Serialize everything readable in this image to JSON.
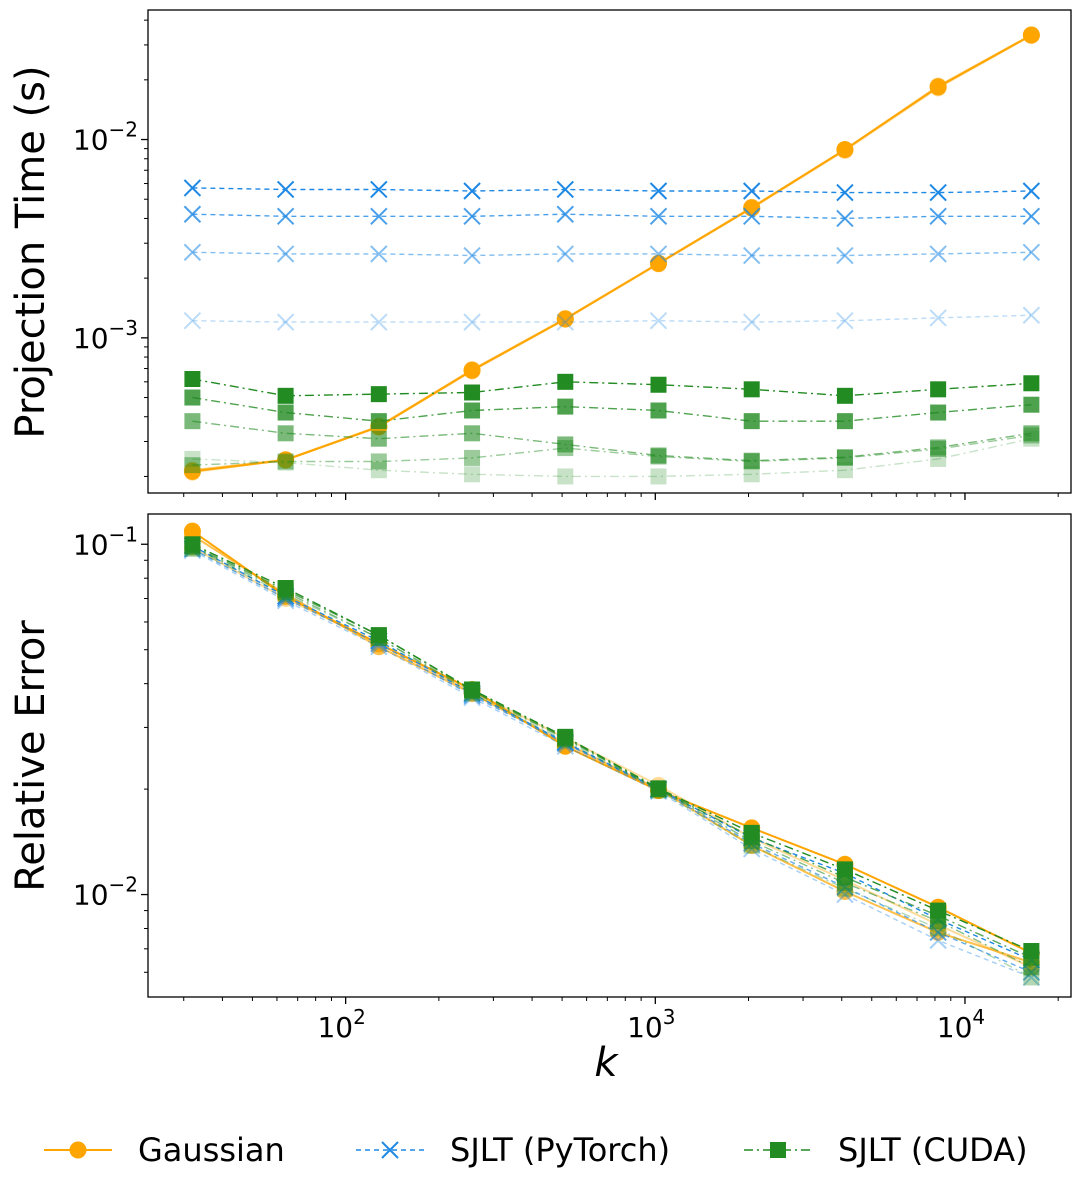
{
  "chart_data": [
    {
      "type": "line",
      "panel": "top",
      "title": "",
      "xscale": "log",
      "yscale": "log",
      "xlabel": "",
      "ylabel": "Projection Time (s)",
      "xlim": [
        23,
        22000
      ],
      "ylim": [
        0.000165,
        0.045
      ],
      "yticks": [
        {
          "value": 0.01,
          "base": "10",
          "exp": "−2"
        },
        {
          "value": 0.001,
          "base": "10",
          "exp": "−3"
        }
      ],
      "x": [
        32,
        64,
        128,
        256,
        512,
        1024,
        2048,
        4096,
        8192,
        16384
      ],
      "series": [
        {
          "name": "Gaussian",
          "method": "gaussian",
          "alpha": 0.35,
          "values": [
            0.00021,
            0.000242,
            0.000355,
            0.00068,
            0.00124,
            0.00236,
            0.0045,
            0.0088,
            0.0182,
            0.0335
          ]
        },
        {
          "name": "Gaussian",
          "method": "gaussian",
          "alpha": 0.6,
          "values": [
            0.000215,
            0.000243,
            0.000358,
            0.00069,
            0.00125,
            0.00238,
            0.00455,
            0.0089,
            0.0186,
            0.0337
          ]
        },
        {
          "name": "Gaussian",
          "method": "gaussian",
          "alpha": 1.0,
          "values": [
            0.000212,
            0.000242,
            0.000356,
            0.000685,
            0.001245,
            0.00237,
            0.00452,
            0.0089,
            0.0184,
            0.0336
          ]
        },
        {
          "name": "SJLT (PyTorch)",
          "method": "sjlt_pytorch",
          "alpha": 0.3,
          "values": [
            0.00122,
            0.0012,
            0.0012,
            0.0012,
            0.0012,
            0.00122,
            0.0012,
            0.00122,
            0.00126,
            0.0013
          ]
        },
        {
          "name": "SJLT (PyTorch)",
          "method": "sjlt_pytorch",
          "alpha": 0.55,
          "values": [
            0.0027,
            0.00265,
            0.00265,
            0.0026,
            0.00265,
            0.00265,
            0.0026,
            0.0026,
            0.00265,
            0.0027
          ]
        },
        {
          "name": "SJLT (PyTorch)",
          "method": "sjlt_pytorch",
          "alpha": 0.8,
          "values": [
            0.0042,
            0.0041,
            0.0041,
            0.0041,
            0.0042,
            0.0041,
            0.0041,
            0.004,
            0.0041,
            0.0041
          ]
        },
        {
          "name": "SJLT (PyTorch)",
          "method": "sjlt_pytorch",
          "alpha": 1.0,
          "values": [
            0.0057,
            0.0056,
            0.0056,
            0.0055,
            0.0056,
            0.0055,
            0.0055,
            0.0054,
            0.0054,
            0.0055
          ]
        },
        {
          "name": "SJLT (CUDA)",
          "method": "sjlt_cuda",
          "alpha": 0.25,
          "values": [
            0.000245,
            0.000235,
            0.000215,
            0.000205,
            0.0002,
            0.0002,
            0.000205,
            0.000215,
            0.000245,
            0.00031
          ]
        },
        {
          "name": "SJLT (CUDA)",
          "method": "sjlt_cuda",
          "alpha": 0.45,
          "values": [
            0.000228,
            0.000238,
            0.000238,
            0.000248,
            0.000278,
            0.000252,
            0.000238,
            0.000248,
            0.000275,
            0.000322
          ]
        },
        {
          "name": "SJLT (CUDA)",
          "method": "sjlt_cuda",
          "alpha": 0.6,
          "values": [
            0.00038,
            0.00033,
            0.00031,
            0.00033,
            0.00029,
            0.000255,
            0.00024,
            0.00025,
            0.00028,
            0.00033
          ]
        },
        {
          "name": "SJLT (CUDA)",
          "method": "sjlt_cuda",
          "alpha": 0.8,
          "values": [
            0.0005,
            0.00042,
            0.00038,
            0.00043,
            0.00045,
            0.00043,
            0.00038,
            0.00038,
            0.00042,
            0.00046
          ]
        },
        {
          "name": "SJLT (CUDA)",
          "method": "sjlt_cuda",
          "alpha": 1.0,
          "values": [
            0.00062,
            0.00051,
            0.00052,
            0.00053,
            0.0006,
            0.00058,
            0.00055,
            0.00051,
            0.00055,
            0.00059
          ]
        }
      ]
    },
    {
      "type": "line",
      "panel": "bottom",
      "title": "",
      "xscale": "log",
      "yscale": "log",
      "xlabel": "k",
      "ylabel": "Relative Error",
      "xlim": [
        23,
        22000
      ],
      "ylim": [
        0.0051,
        0.122
      ],
      "xticks": [
        {
          "value": 100,
          "base": "10",
          "exp": "2"
        },
        {
          "value": 1000,
          "base": "10",
          "exp": "3"
        },
        {
          "value": 10000,
          "base": "10",
          "exp": "4"
        }
      ],
      "yticks": [
        {
          "value": 0.1,
          "base": "10",
          "exp": "−1"
        },
        {
          "value": 0.01,
          "base": "10",
          "exp": "−2"
        }
      ],
      "x": [
        32,
        64,
        128,
        256,
        512,
        1024,
        2048,
        4096,
        8192,
        16384
      ],
      "series": [
        {
          "name": "Gaussian",
          "method": "gaussian",
          "alpha": 0.4,
          "values": [
            0.098,
            0.07,
            0.052,
            0.038,
            0.028,
            0.0205,
            0.0145,
            0.011,
            0.0082,
            0.0062
          ]
        },
        {
          "name": "Gaussian",
          "method": "gaussian",
          "alpha": 0.7,
          "values": [
            0.106,
            0.072,
            0.051,
            0.0375,
            0.027,
            0.02,
            0.0138,
            0.0102,
            0.0078,
            0.0064
          ]
        },
        {
          "name": "Gaussian",
          "method": "gaussian",
          "alpha": 1.0,
          "values": [
            0.109,
            0.071,
            0.052,
            0.0385,
            0.0265,
            0.0198,
            0.0155,
            0.0122,
            0.0092,
            0.0068
          ]
        },
        {
          "name": "SJLT (PyTorch)",
          "method": "sjlt_pytorch",
          "alpha": 0.4,
          "values": [
            0.096,
            0.069,
            0.051,
            0.0365,
            0.0265,
            0.0197,
            0.0135,
            0.01,
            0.0074,
            0.0058
          ]
        },
        {
          "name": "SJLT (PyTorch)",
          "method": "sjlt_pytorch",
          "alpha": 0.7,
          "values": [
            0.097,
            0.07,
            0.052,
            0.037,
            0.027,
            0.0199,
            0.014,
            0.0105,
            0.0078,
            0.006
          ]
        },
        {
          "name": "SJLT (PyTorch)",
          "method": "sjlt_pytorch",
          "alpha": 1.0,
          "values": [
            0.099,
            0.071,
            0.053,
            0.0375,
            0.0272,
            0.02,
            0.0145,
            0.0115,
            0.0085,
            0.0065
          ]
        },
        {
          "name": "SJLT (CUDA)",
          "method": "sjlt_cuda",
          "alpha": 0.35,
          "values": [
            0.097,
            0.072,
            0.054,
            0.0375,
            0.0275,
            0.0198,
            0.0138,
            0.0104,
            0.008,
            0.0058
          ]
        },
        {
          "name": "SJLT (CUDA)",
          "method": "sjlt_cuda",
          "alpha": 0.55,
          "values": [
            0.098,
            0.073,
            0.054,
            0.038,
            0.0278,
            0.02,
            0.0142,
            0.0108,
            0.0084,
            0.0062
          ]
        },
        {
          "name": "SJLT (CUDA)",
          "method": "sjlt_cuda",
          "alpha": 0.75,
          "values": [
            0.099,
            0.074,
            0.055,
            0.0383,
            0.028,
            0.02,
            0.0146,
            0.0112,
            0.0087,
            0.0066
          ]
        },
        {
          "name": "SJLT (CUDA)",
          "method": "sjlt_cuda",
          "alpha": 1.0,
          "values": [
            0.1,
            0.075,
            0.055,
            0.0385,
            0.0282,
            0.0201,
            0.015,
            0.0118,
            0.009,
            0.0069
          ]
        }
      ]
    }
  ],
  "legend": [
    {
      "label": "Gaussian",
      "method": "gaussian"
    },
    {
      "label": "SJLT (PyTorch)",
      "method": "sjlt_pytorch"
    },
    {
      "label": "SJLT (CUDA)",
      "method": "sjlt_cuda"
    }
  ],
  "colors": {
    "gaussian": "#FFA500",
    "sjlt_pytorch": "#1E88E5",
    "sjlt_cuda": "#228B22"
  }
}
